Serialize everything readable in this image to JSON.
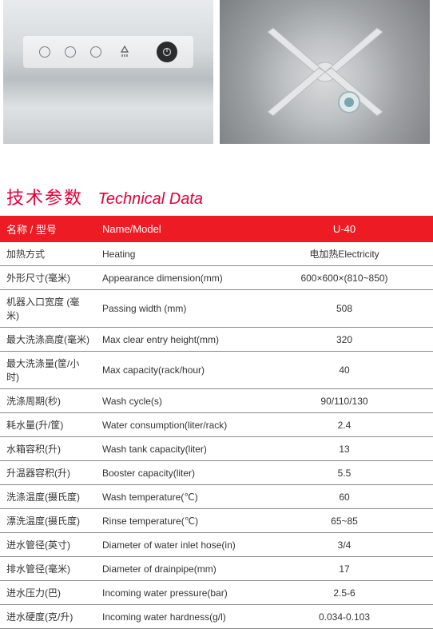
{
  "images": {
    "left_alt": "dishwasher-control-panel",
    "right_alt": "spray-arm-interior"
  },
  "title": {
    "cn": "技术参数",
    "en": "Technical Data"
  },
  "header": {
    "cn": "名称 / 型号",
    "en": "Name/Model",
    "val": "U-40"
  },
  "rows": [
    {
      "cn": "加热方式",
      "en": "Heating",
      "val": "电加热Electricity"
    },
    {
      "cn": "外形尺寸(毫米)",
      "en": "Appearance dimension(mm)",
      "val": "600×600×(810~850)"
    },
    {
      "cn": "机器入口宽度 (毫米)",
      "en": "Passing width (mm)",
      "val": "508"
    },
    {
      "cn": "最大洗涤高度(毫米)",
      "en": "Max clear entry height(mm)",
      "val": "320"
    },
    {
      "cn": "最大洗涤量(筐/小时)",
      "en": "Max capacity(rack/hour)",
      "val": "40"
    },
    {
      "cn": "洗涤周期(秒)",
      "en": "Wash cycle(s)",
      "val": "90/110/130"
    },
    {
      "cn": "耗水量(升/筐)",
      "en": "Water consumption(liter/rack)",
      "val": "2.4"
    },
    {
      "cn": "水箱容积(升)",
      "en": "Wash tank capacity(liter)",
      "val": "13"
    },
    {
      "cn": "升温器容积(升)",
      "en": "Booster capacity(liter)",
      "val": "5.5"
    },
    {
      "cn": "洗涤温度(摄氏度)",
      "en": "Wash temperature(℃)",
      "val": "60"
    },
    {
      "cn": "漂洗温度(摄氏度)",
      "en": "Rinse temperature(℃)",
      "val": "65~85"
    },
    {
      "cn": "进水管径(英寸)",
      "en": "Diameter of water inlet hose(in)",
      "val": "3/4"
    },
    {
      "cn": "排水管径(毫米)",
      "en": "Diameter of drainpipe(mm)",
      "val": "17"
    },
    {
      "cn": "进水压力(巴)",
      "en": "Incoming water  pressure(bar)",
      "val": "2.5-6"
    },
    {
      "cn": "进水硬度(克/升)",
      "en": "Incoming water  hardness(g/l)",
      "val": "0.034-0.103"
    }
  ],
  "styling": {
    "accent_color": "#ed1c24",
    "title_color": "#e4003a",
    "row_border": "#888888",
    "text_color": "#333333",
    "header_text": "#ffffff",
    "font_row": 12,
    "font_header": 13,
    "font_title_cn": 22,
    "font_title_en": 20,
    "col_widths": {
      "cn": 120,
      "en": 200
    }
  }
}
